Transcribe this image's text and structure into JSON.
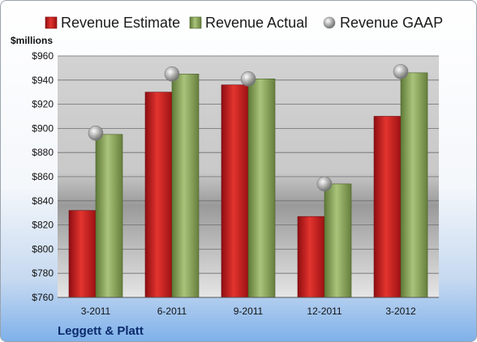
{
  "chart_data": {
    "type": "bar",
    "title": "",
    "xlabel": "",
    "ylabel": "$millions",
    "ylim": [
      760,
      960
    ],
    "ytick_step": 20,
    "ytick_labels": [
      "$760",
      "$780",
      "$800",
      "$820",
      "$840",
      "$860",
      "$880",
      "$900",
      "$920",
      "$940",
      "$960"
    ],
    "grid": true,
    "legend_position": "top",
    "categories": [
      "3-2011",
      "6-2011",
      "9-2011",
      "12-2011",
      "3-2012"
    ],
    "series": [
      {
        "name": "Revenue Estimate",
        "kind": "bar",
        "color": "#cc1f26",
        "values": [
          832,
          930,
          936,
          827,
          910
        ]
      },
      {
        "name": "Revenue Actual",
        "kind": "bar",
        "color": "#8aa85a",
        "values": [
          895,
          945,
          941,
          854,
          946
        ]
      },
      {
        "name": "Revenue GAAP",
        "kind": "marker",
        "color": "#a8a8a8",
        "values": [
          896,
          945,
          941,
          854,
          947
        ]
      }
    ],
    "footer_label": "Leggett & Platt"
  }
}
